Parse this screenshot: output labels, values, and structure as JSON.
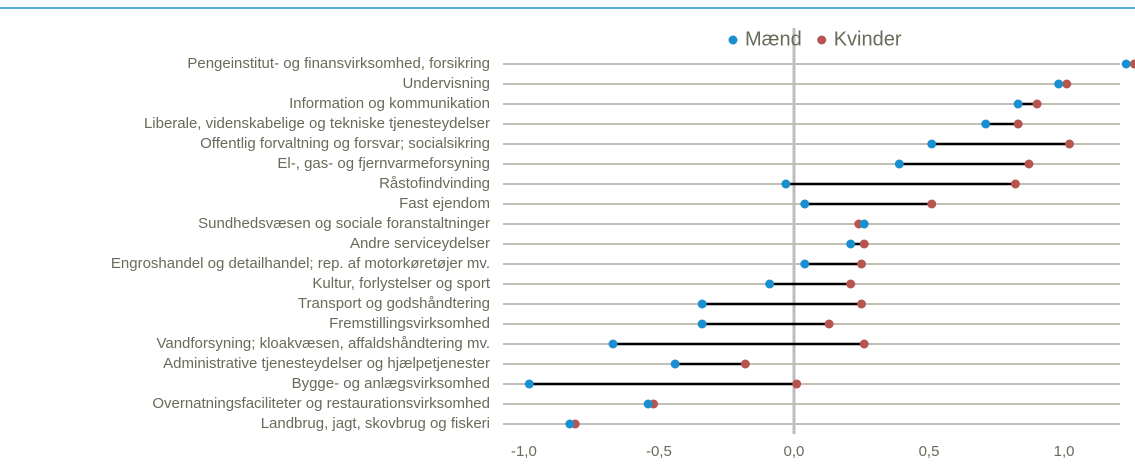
{
  "chart_data": {
    "type": "dumbbell",
    "categories": [
      "Pengeinstitut- og finansvirksomhed, forsikring",
      "Undervisning",
      "Information og kommunikation",
      "Liberale, videnskabelige og tekniske tjenesteydelser",
      "Offentlig forvaltning og forsvar; socialsikring",
      "El-, gas- og fjernvarmeforsyning",
      "Råstofindvinding",
      "Fast ejendom",
      "Sundhedsvæsen og sociale foranstaltninger",
      "Andre serviceydelser",
      "Engroshandel og detailhandel; rep. af motorkøretøjer mv.",
      "Kultur, forlystelser og sport",
      "Transport og godshåndtering",
      "Fremstillingsvirksomhed",
      "Vandforsyning; kloakvæsen, affaldshåndtering mv.",
      "Administrative tjenesteydelser og hjælpetjenester",
      "Bygge- og anlægsvirksomhed",
      "Overnatningsfaciliteter og restaurationsvirksomhed",
      "Landbrug, jagt, skovbrug og fiskeri"
    ],
    "series": [
      {
        "name": "Mænd",
        "color": "#1a8fd0",
        "values": [
          1.23,
          0.98,
          0.83,
          0.71,
          0.51,
          0.39,
          -0.03,
          0.04,
          0.26,
          0.21,
          0.04,
          -0.09,
          -0.34,
          -0.34,
          -0.67,
          -0.44,
          -0.98,
          -0.54,
          -0.83
        ]
      },
      {
        "name": "Kvinder",
        "color": "#b85450",
        "values": [
          1.26,
          1.01,
          0.9,
          0.83,
          1.02,
          0.87,
          0.82,
          0.51,
          0.24,
          0.26,
          0.25,
          0.21,
          0.25,
          0.13,
          0.26,
          -0.18,
          0.01,
          -0.52,
          -0.81
        ]
      }
    ],
    "xlim": [
      -1.07,
      1.27
    ],
    "xticks": [
      {
        "value": -1.0,
        "label": "-1,0"
      },
      {
        "value": -0.5,
        "label": "-0,5"
      },
      {
        "value": 0.0,
        "label": "0,0"
      },
      {
        "value": 0.5,
        "label": "0,5"
      },
      {
        "value": 1.0,
        "label": "1,0"
      }
    ],
    "legend": "top"
  }
}
